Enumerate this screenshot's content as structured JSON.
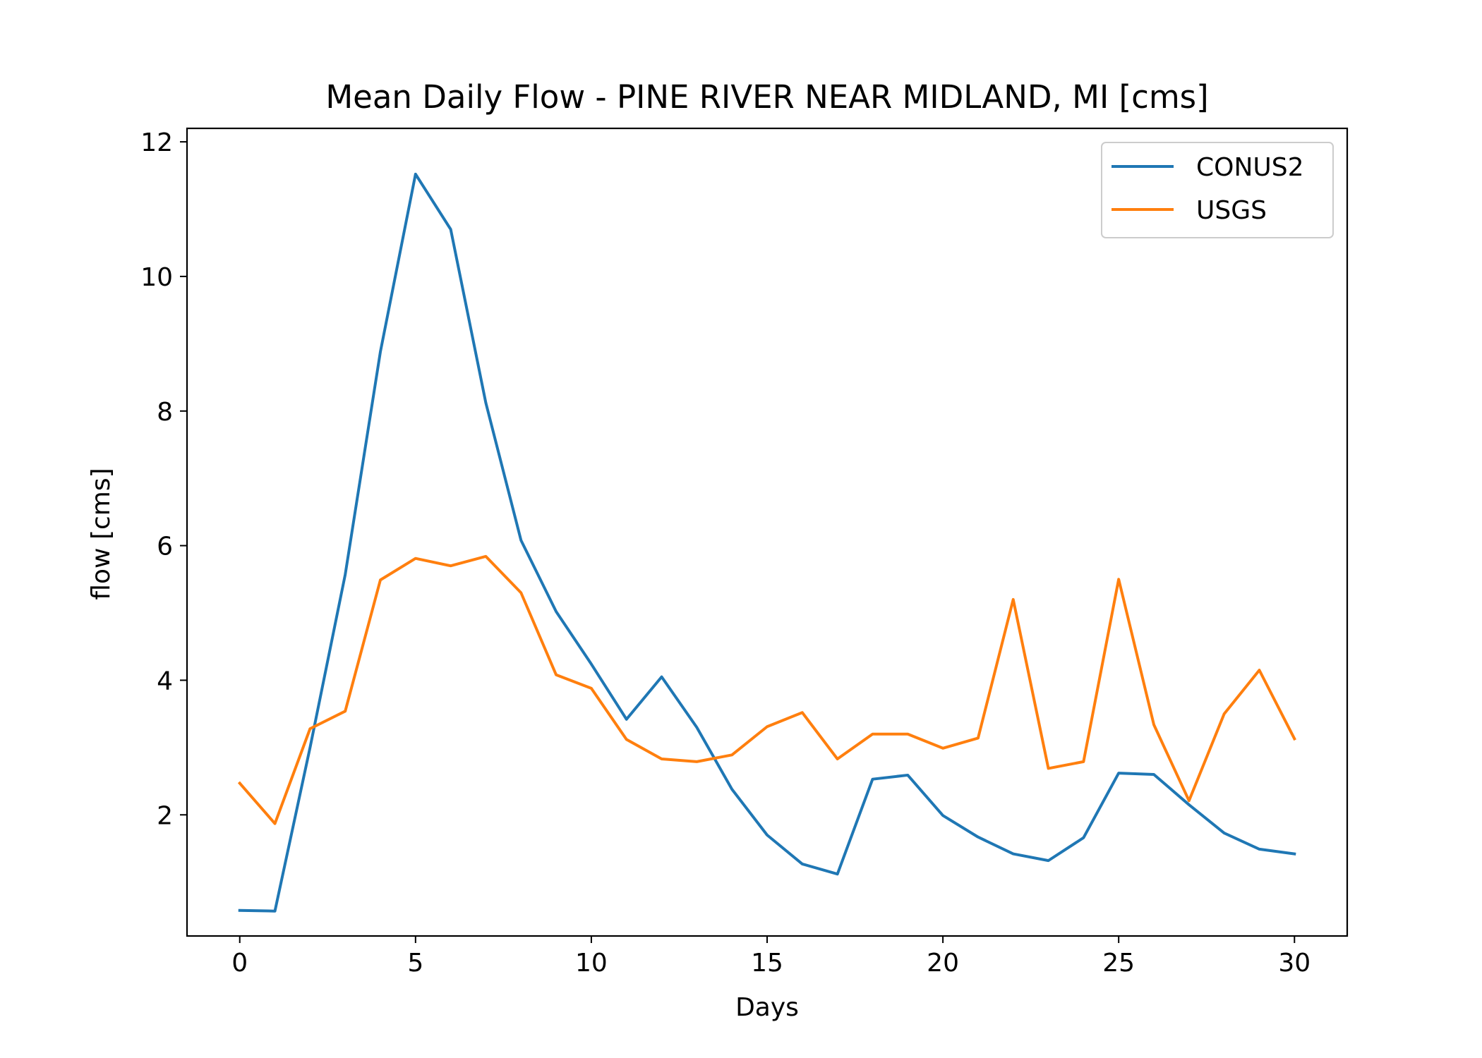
{
  "chart_data": {
    "type": "line",
    "title": "Mean Daily Flow - PINE RIVER NEAR MIDLAND, MI [cms]",
    "xlabel": "Days",
    "ylabel": "flow [cms]",
    "xlim": [
      -1.5,
      31.5
    ],
    "ylim": [
      0.2,
      12.2
    ],
    "xticks": [
      0,
      5,
      10,
      15,
      20,
      25,
      30
    ],
    "yticks": [
      2,
      4,
      6,
      8,
      10,
      12
    ],
    "grid": false,
    "legend_position": "top-right",
    "x": [
      0,
      1,
      2,
      3,
      4,
      5,
      6,
      7,
      8,
      9,
      10,
      11,
      12,
      13,
      14,
      15,
      16,
      17,
      18,
      19,
      20,
      21,
      22,
      23,
      24,
      25,
      26,
      27,
      28,
      29,
      30
    ],
    "series": [
      {
        "name": "CONUS2",
        "color": "#1f77b4",
        "values": [
          0.58,
          0.57,
          3.0,
          5.57,
          8.88,
          11.52,
          10.7,
          8.12,
          6.08,
          5.02,
          4.24,
          3.42,
          4.05,
          3.3,
          2.38,
          1.7,
          1.27,
          1.12,
          2.53,
          2.59,
          1.99,
          1.67,
          1.42,
          1.32,
          1.66,
          2.62,
          2.6,
          2.15,
          1.73,
          1.49,
          1.42
        ]
      },
      {
        "name": "USGS",
        "color": "#ff7f0e",
        "values": [
          2.47,
          1.87,
          3.28,
          3.54,
          5.49,
          5.81,
          5.7,
          5.84,
          5.3,
          4.08,
          3.88,
          3.12,
          2.83,
          2.79,
          2.89,
          3.31,
          3.52,
          2.83,
          3.2,
          3.2,
          2.99,
          3.14,
          5.2,
          2.69,
          2.79,
          5.5,
          3.34,
          2.21,
          3.5,
          4.15,
          3.13
        ]
      }
    ]
  }
}
